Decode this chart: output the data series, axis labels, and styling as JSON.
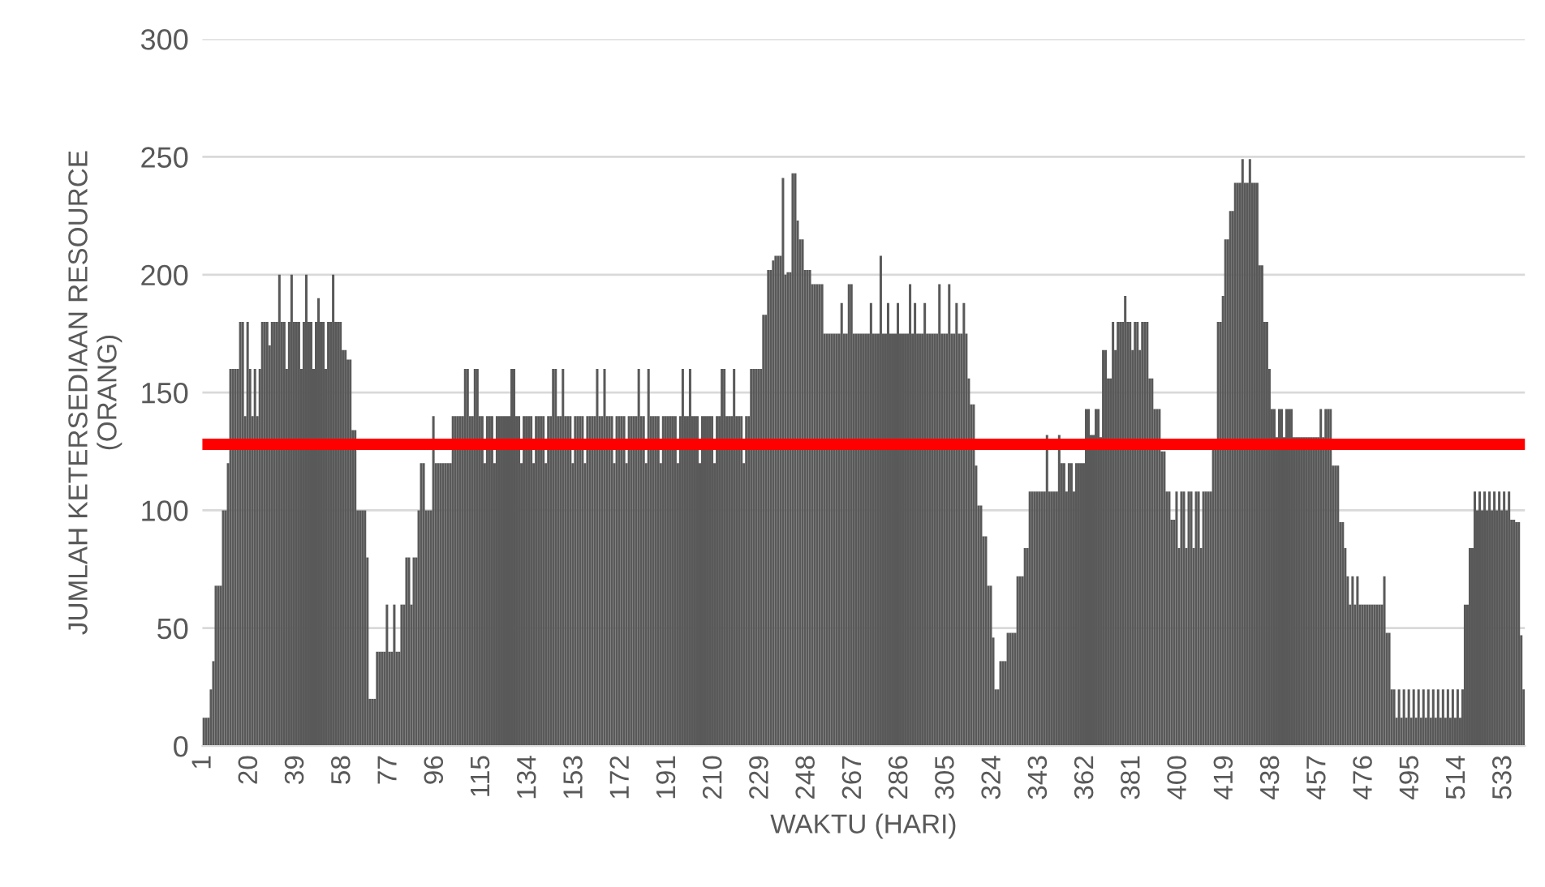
{
  "chart_data": {
    "type": "bar",
    "xlabel": "WAKTU (HARI)",
    "ylabel": "JUMLAH KETERSEDIAAN RESOURCE\n(ORANG)",
    "color": "#595959",
    "ylim": [
      0,
      300
    ],
    "yticks": [
      0,
      50,
      100,
      150,
      200,
      250,
      300
    ],
    "grid": "y",
    "ref_lines": [
      {
        "axis": "y",
        "value": 128,
        "color": "#ff0000"
      }
    ],
    "categories": [
      "1",
      null,
      null,
      null,
      null,
      null,
      null,
      null,
      null,
      null,
      null,
      null,
      null,
      null,
      null,
      null,
      null,
      null,
      null,
      "20",
      null,
      null,
      null,
      null,
      null,
      null,
      null,
      null,
      null,
      null,
      null,
      null,
      null,
      null,
      null,
      null,
      null,
      null,
      "39",
      null,
      null,
      null,
      null,
      null,
      null,
      null,
      null,
      null,
      null,
      null,
      null,
      null,
      null,
      null,
      null,
      null,
      null,
      "58",
      null,
      null,
      null,
      null,
      null,
      null,
      null,
      null,
      null,
      null,
      null,
      null,
      null,
      null,
      null,
      null,
      null,
      null,
      "77",
      null,
      null,
      null,
      null,
      null,
      null,
      null,
      null,
      null,
      null,
      null,
      null,
      null,
      null,
      null,
      null,
      null,
      null,
      "96",
      null,
      null,
      null,
      null,
      null,
      null,
      null,
      null,
      null,
      null,
      null,
      null,
      null,
      null,
      null,
      null,
      null,
      null,
      "115",
      null,
      null,
      null,
      null,
      null,
      null,
      null,
      null,
      null,
      null,
      null,
      null,
      null,
      null,
      null,
      null,
      null,
      null,
      "134",
      null,
      null,
      null,
      null,
      null,
      null,
      null,
      null,
      null,
      null,
      null,
      null,
      null,
      null,
      null,
      null,
      null,
      null,
      "153",
      null,
      null,
      null,
      null,
      null,
      null,
      null,
      null,
      null,
      null,
      null,
      null,
      null,
      null,
      null,
      null,
      null,
      null,
      "172",
      null,
      null,
      null,
      null,
      null,
      null,
      null,
      null,
      null,
      null,
      null,
      null,
      null,
      null,
      null,
      null,
      null,
      null,
      "191",
      null,
      null,
      null,
      null,
      null,
      null,
      null,
      null,
      null,
      null,
      null,
      null,
      null,
      null,
      null,
      null,
      null,
      null,
      "210",
      null,
      null,
      null,
      null,
      null,
      null,
      null,
      null,
      null,
      null,
      null,
      null,
      null,
      null,
      null,
      null,
      null,
      null,
      "229",
      null,
      null,
      null,
      null,
      null,
      null,
      null,
      null,
      null,
      null,
      null,
      null,
      null,
      null,
      null,
      null,
      null,
      null,
      "248",
      null,
      null,
      null,
      null,
      null,
      null,
      null,
      null,
      null,
      null,
      null,
      null,
      null,
      null,
      null,
      null,
      null,
      null,
      "267",
      null,
      null,
      null,
      null,
      null,
      null,
      null,
      null,
      null,
      null,
      null,
      null,
      null,
      null,
      null,
      null,
      null,
      null,
      "286",
      null,
      null,
      null,
      null,
      null,
      null,
      null,
      null,
      null,
      null,
      null,
      null,
      null,
      null,
      null,
      null,
      null,
      null,
      "305",
      null,
      null,
      null,
      null,
      null,
      null,
      null,
      null,
      null,
      null,
      null,
      null,
      null,
      null,
      null,
      null,
      null,
      null,
      "324",
      null,
      null,
      null,
      null,
      null,
      null,
      null,
      null,
      null,
      null,
      null,
      null,
      null,
      null,
      null,
      null,
      null,
      null,
      "343",
      null,
      null,
      null,
      null,
      null,
      null,
      null,
      null,
      null,
      null,
      null,
      null,
      null,
      null,
      null,
      null,
      null,
      null,
      "362",
      null,
      null,
      null,
      null,
      null,
      null,
      null,
      null,
      null,
      null,
      null,
      null,
      null,
      null,
      null,
      null,
      null,
      null,
      "381",
      null,
      null,
      null,
      null,
      null,
      null,
      null,
      null,
      null,
      null,
      null,
      null,
      null,
      null,
      null,
      null,
      null,
      null,
      "400",
      null,
      null,
      null,
      null,
      null,
      null,
      null,
      null,
      null,
      null,
      null,
      null,
      null,
      null,
      null,
      null,
      null,
      null,
      "419",
      null,
      null,
      null,
      null,
      null,
      null,
      null,
      null,
      null,
      null,
      null,
      null,
      null,
      null,
      null,
      null,
      null,
      null,
      "438",
      null,
      null,
      null,
      null,
      null,
      null,
      null,
      null,
      null,
      null,
      null,
      null,
      null,
      null,
      null,
      null,
      null,
      null,
      "457",
      null,
      null,
      null,
      null,
      null,
      null,
      null,
      null,
      null,
      null,
      null,
      null,
      null,
      null,
      null,
      null,
      null,
      null,
      "476",
      null,
      null,
      null,
      null,
      null,
      null,
      null,
      null,
      null,
      null,
      null,
      null,
      null,
      null,
      null,
      null,
      null,
      null,
      "495",
      null,
      null,
      null,
      null,
      null,
      null,
      null,
      null,
      null,
      null,
      null,
      null,
      null,
      null,
      null,
      null,
      null,
      null,
      "514",
      null,
      null,
      null,
      null,
      null,
      null,
      null,
      null,
      null,
      null,
      null,
      null,
      null,
      null,
      null,
      null,
      null,
      null,
      "533",
      null,
      null,
      null,
      null,
      null,
      null,
      null,
      null
    ],
    "values": [
      12,
      12,
      12,
      24,
      36,
      68,
      68,
      68,
      100,
      100,
      120,
      160,
      160,
      160,
      160,
      180,
      180,
      140,
      180,
      160,
      140,
      160,
      140,
      160,
      180,
      180,
      180,
      170,
      180,
      180,
      180,
      200,
      180,
      180,
      160,
      180,
      200,
      180,
      180,
      180,
      160,
      180,
      200,
      180,
      180,
      160,
      180,
      190,
      180,
      180,
      160,
      180,
      180,
      200,
      180,
      180,
      180,
      168,
      168,
      164,
      164,
      134,
      134,
      100,
      100,
      100,
      100,
      80,
      20,
      20,
      20,
      40,
      40,
      40,
      40,
      60,
      40,
      40,
      60,
      40,
      40,
      60,
      60,
      80,
      80,
      60,
      80,
      80,
      100,
      120,
      120,
      100,
      100,
      100,
      140,
      120,
      120,
      120,
      120,
      120,
      120,
      120,
      140,
      140,
      140,
      140,
      140,
      160,
      160,
      140,
      140,
      160,
      160,
      140,
      140,
      120,
      140,
      140,
      140,
      120,
      140,
      140,
      140,
      140,
      140,
      140,
      160,
      160,
      140,
      140,
      120,
      140,
      140,
      140,
      140,
      120,
      140,
      140,
      140,
      140,
      120,
      140,
      140,
      160,
      160,
      140,
      140,
      160,
      140,
      140,
      140,
      120,
      140,
      140,
      140,
      140,
      120,
      140,
      140,
      140,
      140,
      160,
      140,
      140,
      160,
      140,
      140,
      140,
      120,
      140,
      140,
      140,
      140,
      120,
      140,
      140,
      140,
      140,
      160,
      140,
      140,
      120,
      160,
      140,
      140,
      140,
      140,
      120,
      140,
      140,
      140,
      140,
      140,
      140,
      120,
      140,
      160,
      140,
      140,
      160,
      140,
      140,
      140,
      120,
      140,
      140,
      140,
      140,
      140,
      120,
      140,
      140,
      160,
      160,
      140,
      140,
      140,
      160,
      140,
      140,
      140,
      120,
      140,
      140,
      160,
      160,
      160,
      160,
      160,
      183,
      183,
      202,
      202,
      206,
      208,
      208,
      208,
      241,
      200,
      201,
      201,
      243,
      243,
      223,
      215,
      215,
      202,
      202,
      202,
      196,
      196,
      196,
      196,
      196,
      175,
      175,
      175,
      175,
      175,
      175,
      175,
      188,
      175,
      175,
      196,
      196,
      175,
      175,
      175,
      175,
      175,
      175,
      175,
      188,
      175,
      175,
      175,
      208,
      175,
      175,
      188,
      175,
      175,
      175,
      188,
      175,
      175,
      175,
      175,
      196,
      175,
      188,
      175,
      175,
      175,
      188,
      175,
      175,
      175,
      175,
      175,
      196,
      175,
      175,
      175,
      196,
      175,
      175,
      188,
      175,
      175,
      188,
      175,
      156,
      145,
      145,
      119,
      102,
      102,
      89,
      89,
      68,
      68,
      46,
      24,
      24,
      36,
      36,
      36,
      48,
      48,
      48,
      48,
      72,
      72,
      72,
      84,
      84,
      108,
      108,
      108,
      108,
      108,
      108,
      108,
      132,
      108,
      108,
      108,
      108,
      132,
      120,
      120,
      108,
      120,
      120,
      108,
      120,
      120,
      120,
      120,
      143,
      143,
      132,
      132,
      143,
      143,
      131,
      168,
      168,
      156,
      156,
      180,
      168,
      180,
      180,
      180,
      191,
      180,
      180,
      168,
      180,
      180,
      168,
      180,
      180,
      180,
      156,
      156,
      143,
      143,
      143,
      125,
      125,
      108,
      108,
      96,
      96,
      108,
      84,
      108,
      108,
      84,
      108,
      108,
      84,
      108,
      108,
      84,
      108,
      108,
      108,
      108,
      126,
      126,
      180,
      180,
      191,
      215,
      215,
      227,
      227,
      239,
      239,
      239,
      249,
      239,
      239,
      249,
      239,
      239,
      239,
      204,
      204,
      180,
      180,
      160,
      143,
      143,
      131,
      143,
      143,
      131,
      143,
      143,
      143,
      131,
      131,
      131,
      131,
      131,
      131,
      131,
      131,
      131,
      131,
      131,
      143,
      131,
      143,
      143,
      143,
      119,
      119,
      119,
      95,
      95,
      84,
      72,
      60,
      72,
      60,
      72,
      60,
      60,
      60,
      60,
      60,
      60,
      60,
      60,
      60,
      60,
      72,
      48,
      48,
      24,
      24,
      12,
      24,
      12,
      24,
      12,
      24,
      12,
      24,
      12,
      24,
      12,
      24,
      12,
      24,
      12,
      24,
      12,
      24,
      12,
      24,
      12,
      24,
      12,
      24,
      12,
      24,
      12,
      24,
      60,
      60,
      84,
      84,
      108,
      100,
      108,
      100,
      108,
      100,
      108,
      100,
      108,
      100,
      108,
      100,
      108,
      100,
      108,
      96,
      96,
      95,
      95,
      47,
      24
    ]
  }
}
